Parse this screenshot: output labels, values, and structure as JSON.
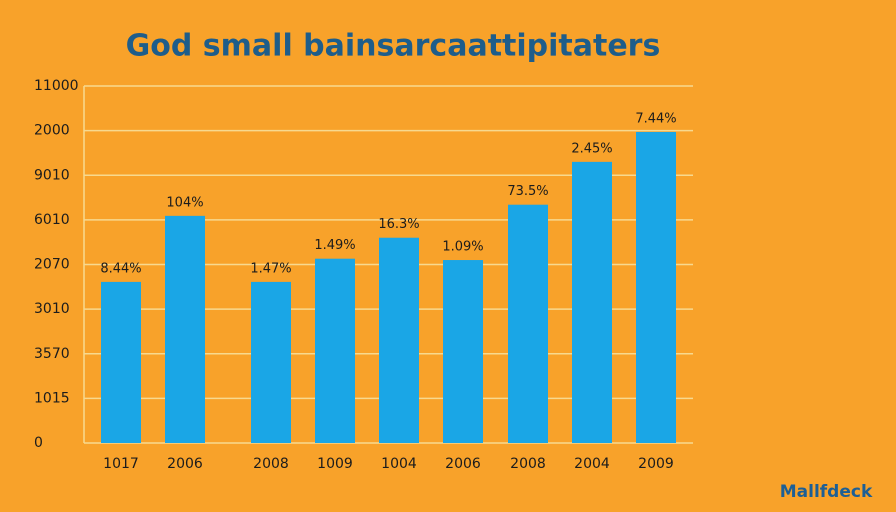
{
  "chart_data": {
    "type": "bar",
    "title": "God small bainsarcaattipitaters",
    "categories": [
      "1017",
      "2006",
      "2008",
      "1009",
      "1004",
      "2006",
      "2008",
      "2004",
      "2009"
    ],
    "values": [
      3.61,
      5.09,
      3.61,
      4.13,
      4.6,
      4.1,
      5.34,
      6.3,
      6.97
    ],
    "annotations": [
      "8.44%",
      "104%",
      "1.47%",
      "1.49%",
      "16.3%",
      "1.09%",
      "73.5%",
      "2.45%",
      "7.44%"
    ],
    "color": "#1aa6e6",
    "ylim": [
      0,
      8
    ],
    "yticks": [
      0,
      {
        "value": 1,
        "label": "1015"
      },
      {
        "value": 2,
        "label": "3570"
      },
      {
        "value": 3,
        "label": "3010"
      },
      {
        "value": 4,
        "label": "2070"
      },
      {
        "value": 5,
        "label": "6010"
      },
      {
        "value": 6,
        "label": "9010"
      },
      {
        "value": 7,
        "label": "2000"
      },
      {
        "value": 8,
        "label": "11000"
      }
    ],
    "grid": true,
    "watermark": "Mallfdeck"
  }
}
